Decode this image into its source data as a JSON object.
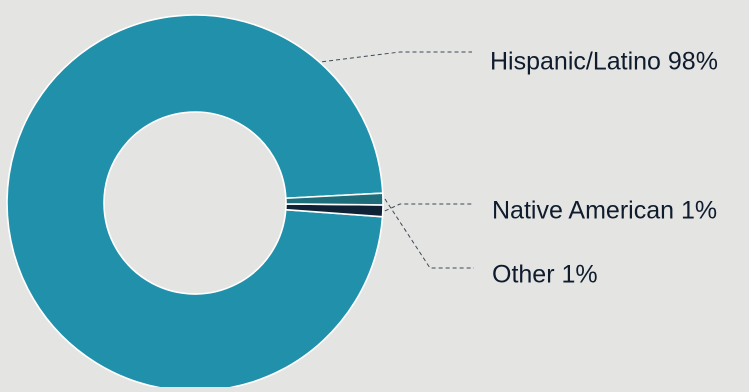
{
  "chart_data": {
    "type": "pie",
    "variant": "donut",
    "title": "",
    "slices": [
      {
        "label": "Hispanic/Latino 98%",
        "value": 98,
        "color": "#2191ab"
      },
      {
        "label": "Native American 1%",
        "value": 1,
        "color": "#0f2235"
      },
      {
        "label": "Other 1%",
        "value": 1,
        "color": "#1e6d7a"
      }
    ],
    "start_angle_deg": 87,
    "direction": "counterclockwise",
    "slice_separator_color": "#ffffff",
    "leader_line_style": "dashed",
    "background_color": "#e4e4e3"
  }
}
